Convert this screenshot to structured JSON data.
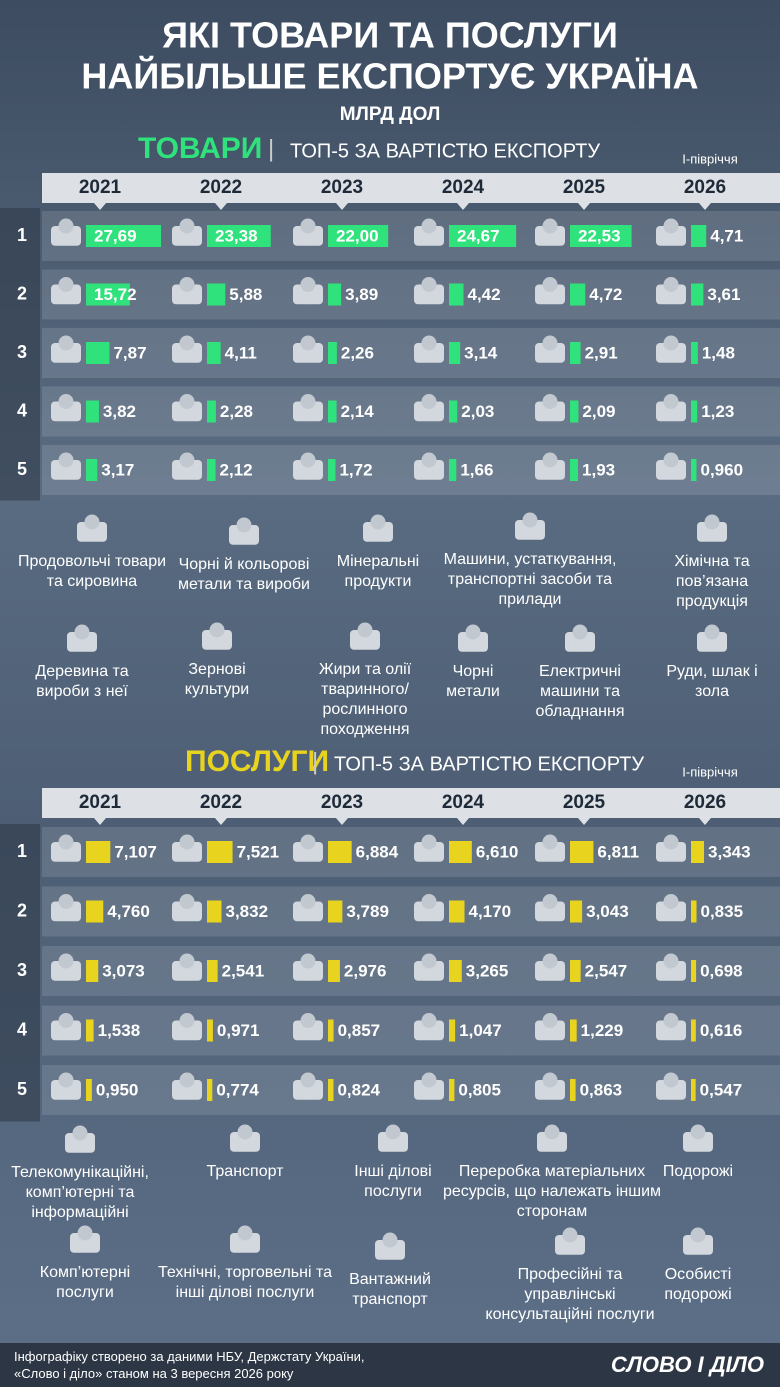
{
  "header": {
    "title_line1": "ЯКІ ТОВАРИ ТА ПОСЛУГИ",
    "title_line2": "НАЙБІЛЬШЕ ЕКСПОРТУЄ УКРАЇНА",
    "unit": "МЛРД ДОЛ"
  },
  "ranks": [
    "1",
    "2",
    "3",
    "4",
    "5"
  ],
  "goods": {
    "label": "ТОВАРИ",
    "separator": "|",
    "subtitle": "ТОП-5 ЗА ВАРТІСТЮ ЕКСПОРТУ",
    "note": "І-півріччя",
    "color": "#2fe27c",
    "years": [
      "2021",
      "2022",
      "2023",
      "2024",
      "2025",
      "2026"
    ],
    "rows": [
      [
        {
          "item": 0,
          "value": 27.69,
          "label": "27,69"
        },
        {
          "item": 0,
          "value": 23.38,
          "label": "23,38"
        },
        {
          "item": 0,
          "value": 22.0,
          "label": "22,00"
        },
        {
          "item": 0,
          "value": 24.67,
          "label": "24,67"
        },
        {
          "item": 0,
          "value": 22.53,
          "label": "22,53"
        },
        {
          "item": 6,
          "value": 4.71,
          "label": "4,71"
        }
      ],
      [
        {
          "item": 1,
          "value": 15.72,
          "label": "15,72"
        },
        {
          "item": 1,
          "value": 5.88,
          "label": "5,88"
        },
        {
          "item": 1,
          "value": 3.89,
          "label": "3,89"
        },
        {
          "item": 1,
          "value": 4.42,
          "label": "4,42"
        },
        {
          "item": 1,
          "value": 4.72,
          "label": "4,72"
        },
        {
          "item": 7,
          "value": 3.61,
          "label": "3,61"
        }
      ],
      [
        {
          "item": 2,
          "value": 7.87,
          "label": "7,87"
        },
        {
          "item": 2,
          "value": 4.11,
          "label": "4,11"
        },
        {
          "item": 2,
          "value": 2.26,
          "label": "2,26"
        },
        {
          "item": 2,
          "value": 3.14,
          "label": "3,14"
        },
        {
          "item": 2,
          "value": 2.91,
          "label": "2,91"
        },
        {
          "item": 8,
          "value": 1.48,
          "label": "1,48"
        }
      ],
      [
        {
          "item": 3,
          "value": 3.82,
          "label": "3,82"
        },
        {
          "item": 3,
          "value": 2.28,
          "label": "2,28"
        },
        {
          "item": 3,
          "value": 2.14,
          "label": "2,14"
        },
        {
          "item": 3,
          "value": 2.03,
          "label": "2,03"
        },
        {
          "item": 3,
          "value": 2.09,
          "label": "2,09"
        },
        {
          "item": 9,
          "value": 1.23,
          "label": "1,23"
        }
      ],
      [
        {
          "item": 4,
          "value": 3.17,
          "label": "3,17"
        },
        {
          "item": 5,
          "value": 2.12,
          "label": "2,12"
        },
        {
          "item": 5,
          "value": 1.72,
          "label": "1,72"
        },
        {
          "item": 5,
          "value": 1.66,
          "label": "1,66"
        },
        {
          "item": 5,
          "value": 1.93,
          "label": "1,93"
        },
        {
          "item": 10,
          "value": 0.96,
          "label": "0,960"
        }
      ]
    ],
    "items": [
      "Продовольчі товари та сировина",
      "Чорні й кольорові метали та вироби",
      "Мінеральні продукти",
      "Машини, устаткування, транспортні засоби та прилади",
      "Хімічна та пов’язана продукція",
      "Деревина та вироби з неї",
      "Зернові культури",
      "Жири та олії тваринного/рослинного походження",
      "Чорні метали",
      "Електричні машини та обладнання",
      "Руди, шлак і зола"
    ]
  },
  "services": {
    "label": "ПОСЛУГИ",
    "separator": "|",
    "subtitle": "ТОП-5 ЗА ВАРТІСТЮ ЕКСПОРТУ",
    "note": "І-півріччя",
    "color": "#e8d31e",
    "years": [
      "2021",
      "2022",
      "2023",
      "2024",
      "2025",
      "2026"
    ],
    "rows": [
      [
        {
          "item": 0,
          "value": 7.107,
          "label": "7,107"
        },
        {
          "item": 0,
          "value": 7.521,
          "label": "7,521"
        },
        {
          "item": 0,
          "value": 6.884,
          "label": "6,884"
        },
        {
          "item": 0,
          "value": 6.61,
          "label": "6,610"
        },
        {
          "item": 0,
          "value": 6.811,
          "label": "6,811"
        },
        {
          "item": 5,
          "value": 3.343,
          "label": "3,343"
        }
      ],
      [
        {
          "item": 1,
          "value": 4.76,
          "label": "4,760"
        },
        {
          "item": 1,
          "value": 3.832,
          "label": "3,832"
        },
        {
          "item": 1,
          "value": 3.789,
          "label": "3,789"
        },
        {
          "item": 1,
          "value": 4.17,
          "label": "4,170"
        },
        {
          "item": 2,
          "value": 3.043,
          "label": "3,043"
        },
        {
          "item": 6,
          "value": 0.835,
          "label": "0,835"
        }
      ],
      [
        {
          "item": 2,
          "value": 3.073,
          "label": "3,073"
        },
        {
          "item": 2,
          "value": 2.541,
          "label": "2,541"
        },
        {
          "item": 2,
          "value": 2.976,
          "label": "2,976"
        },
        {
          "item": 2,
          "value": 3.265,
          "label": "3,265"
        },
        {
          "item": 1,
          "value": 2.547,
          "label": "2,547"
        },
        {
          "item": 7,
          "value": 0.698,
          "label": "0,698"
        }
      ],
      [
        {
          "item": 3,
          "value": 1.538,
          "label": "1,538"
        },
        {
          "item": 3,
          "value": 0.971,
          "label": "0,971"
        },
        {
          "item": 4,
          "value": 0.857,
          "label": "0,857"
        },
        {
          "item": 4,
          "value": 1.047,
          "label": "1,047"
        },
        {
          "item": 4,
          "value": 1.229,
          "label": "1,229"
        },
        {
          "item": 8,
          "value": 0.616,
          "label": "0,616"
        }
      ],
      [
        {
          "item": 4,
          "value": 0.95,
          "label": "0,950"
        },
        {
          "item": 4,
          "value": 0.774,
          "label": "0,774"
        },
        {
          "item": 3,
          "value": 0.824,
          "label": "0,824"
        },
        {
          "item": 3,
          "value": 0.805,
          "label": "0,805"
        },
        {
          "item": 3,
          "value": 0.863,
          "label": "0,863"
        },
        {
          "item": 9,
          "value": 0.547,
          "label": "0,547"
        }
      ]
    ],
    "items": [
      "Телекомунікаційні, комп’ютерні та інформаційні",
      "Транспорт",
      "Інші ділові послуги",
      "Переробка матеріальних ресурсів, що належать іншим сторонам",
      "Подорожі",
      "Комп’ютерні послуги",
      "Технічні, торговельні та інші ділові послуги",
      "Вантажний транспорт",
      "Професійні та управлінські консультаційні послуги",
      "Особисті подорожі"
    ]
  },
  "footer": {
    "line1": "Інфографіку створено за даними НБУ, Держстату України,",
    "line2": "«Слово і діло» станом на 3 вересня 2026 року",
    "logo": "СЛОВО І ДІЛО"
  }
}
